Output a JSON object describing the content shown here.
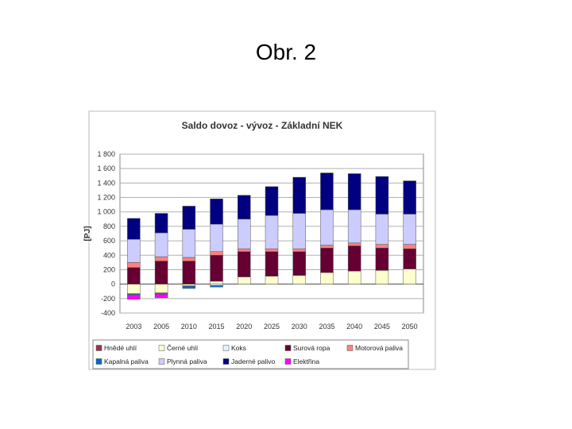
{
  "slide": {
    "title": "Obr. 2"
  },
  "chart_data": {
    "type": "bar",
    "stacked": true,
    "title": "Saldo dovoz - vývoz - Základní NEK",
    "xlabel": "",
    "ylabel": "[PJ]",
    "ylim": [
      -400,
      1800
    ],
    "yticks": [
      -400,
      -200,
      0,
      200,
      400,
      600,
      800,
      1000,
      1200,
      1400,
      1600,
      1800
    ],
    "ytick_labels": [
      "-400",
      "-200",
      "0",
      "200",
      "400",
      "600",
      "800",
      "1 000",
      "1 200",
      "1 400",
      "1 600",
      "1 800"
    ],
    "grid": true,
    "legend_position": "bottom",
    "categories": [
      "2003",
      "2005",
      "2010",
      "2015",
      "2020",
      "2025",
      "2030",
      "2035",
      "2040",
      "2045",
      "2050"
    ],
    "series": [
      {
        "name": "Hnědé uhlí",
        "color": "#99334d",
        "values": [
          0,
          0,
          0,
          0,
          0,
          0,
          0,
          0,
          0,
          0,
          0
        ]
      },
      {
        "name": "Černé uhlí",
        "color": "#ffffcc",
        "values": [
          -130,
          -120,
          -20,
          40,
          100,
          110,
          120,
          160,
          180,
          190,
          210
        ]
      },
      {
        "name": "Koks",
        "color": "#e6f2ff",
        "values": [
          -10,
          -10,
          -10,
          -20,
          0,
          0,
          0,
          0,
          0,
          0,
          0
        ]
      },
      {
        "name": "Surová ropa",
        "color": "#660033",
        "values": [
          230,
          320,
          320,
          360,
          350,
          340,
          330,
          340,
          350,
          310,
          280
        ]
      },
      {
        "name": "Motorová paliva",
        "color": "#ff8080",
        "values": [
          70,
          60,
          50,
          50,
          40,
          40,
          40,
          40,
          40,
          50,
          60
        ]
      },
      {
        "name": "Kapalná paliva",
        "color": "#0066cc",
        "values": [
          -10,
          -10,
          -30,
          -20,
          0,
          0,
          0,
          0,
          0,
          0,
          0
        ]
      },
      {
        "name": "Plynná paliva",
        "color": "#ccccff",
        "values": [
          320,
          330,
          390,
          380,
          410,
          460,
          490,
          490,
          460,
          420,
          420
        ]
      },
      {
        "name": "Jaderné palivo",
        "color": "#000080",
        "values": [
          290,
          270,
          320,
          350,
          330,
          400,
          500,
          510,
          500,
          520,
          460
        ]
      },
      {
        "name": "Elektřina",
        "color": "#ff00ff",
        "values": [
          -60,
          -50,
          0,
          0,
          0,
          0,
          0,
          0,
          0,
          0,
          0
        ]
      }
    ]
  }
}
